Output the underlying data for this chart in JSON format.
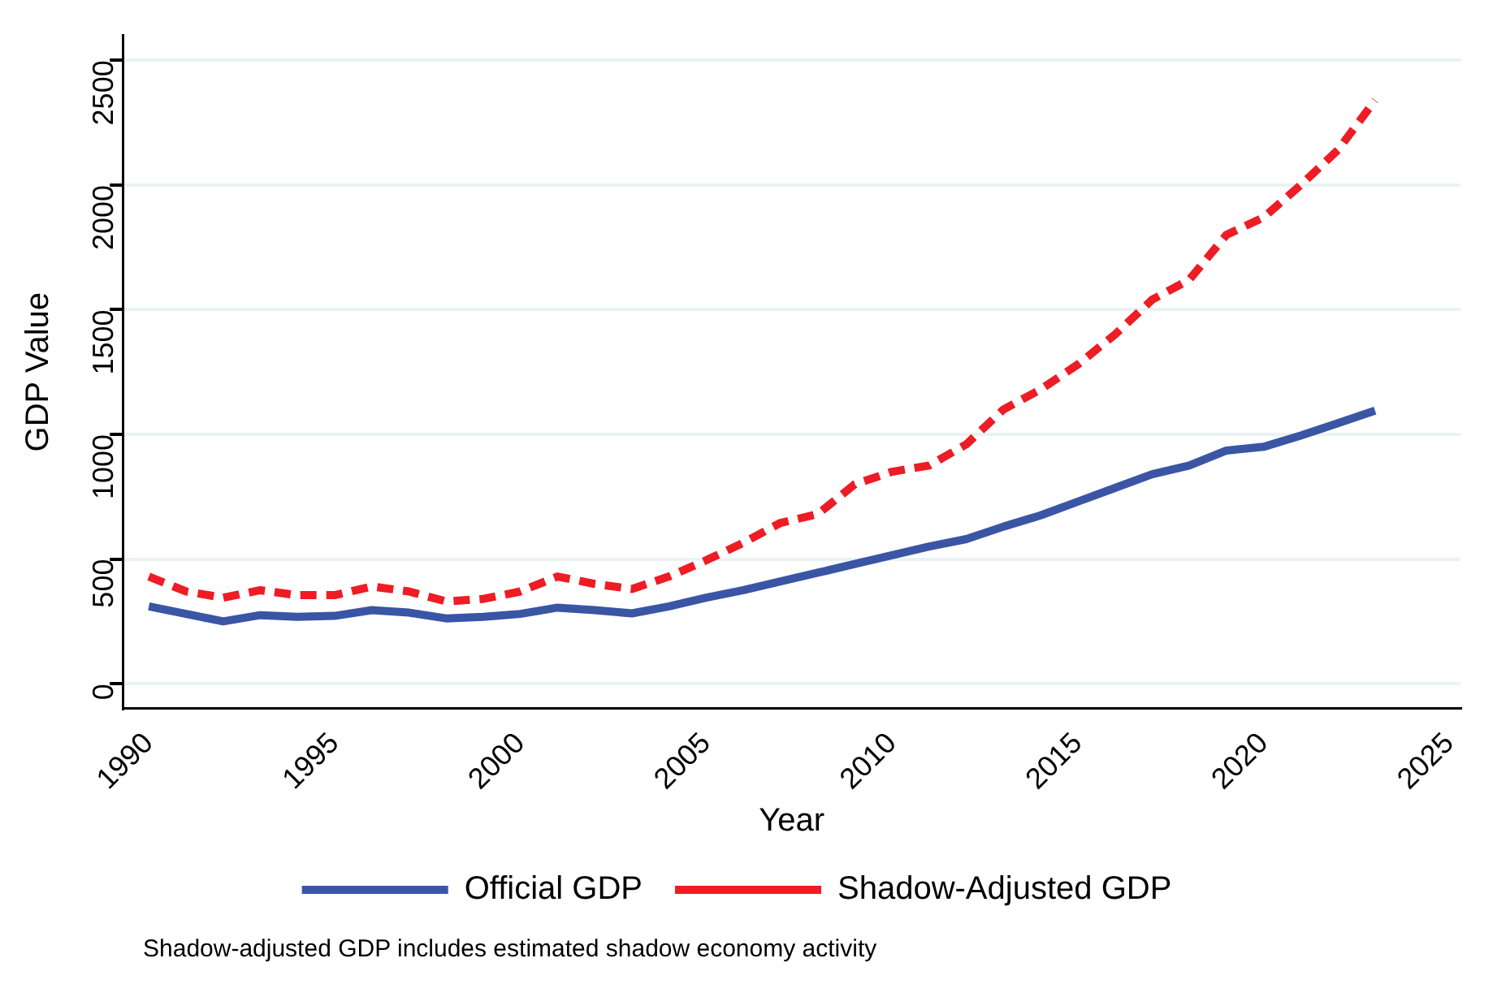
{
  "chart_data": {
    "type": "line",
    "xlabel": "Year",
    "ylabel": "GDP Value",
    "x": [
      1990,
      1991,
      1992,
      1993,
      1994,
      1995,
      1996,
      1997,
      1998,
      1999,
      2000,
      2001,
      2002,
      2003,
      2004,
      2005,
      2006,
      2007,
      2008,
      2009,
      2010,
      2011,
      2012,
      2013,
      2014,
      2015,
      2016,
      2017,
      2018,
      2019,
      2020,
      2021,
      2022,
      2023
    ],
    "series": [
      {
        "name": "Official GDP",
        "color": "#3a55a4",
        "line_style": "solid",
        "values": [
          310,
          280,
          250,
          275,
          268,
          272,
          295,
          285,
          262,
          268,
          280,
          305,
          295,
          282,
          310,
          345,
          375,
          410,
          445,
          480,
          515,
          550,
          580,
          630,
          675,
          730,
          785,
          840,
          875,
          935,
          950,
          995,
          1045,
          1095
        ]
      },
      {
        "name": "Shadow-Adjusted GDP",
        "color": "#ee1c25",
        "line_style": "dashed",
        "values": [
          430,
          370,
          345,
          375,
          355,
          355,
          390,
          370,
          330,
          340,
          370,
          430,
          400,
          380,
          430,
          495,
          565,
          645,
          680,
          800,
          850,
          875,
          960,
          1100,
          1180,
          1280,
          1400,
          1540,
          1620,
          1800,
          1870,
          2000,
          2140,
          2340
        ]
      }
    ],
    "xlim": [
      1989.3,
      2025.3
    ],
    "xticks": [
      1990,
      1995,
      2000,
      2005,
      2010,
      2015,
      2020,
      2025
    ],
    "ylim": [
      -100,
      2600
    ],
    "yticks": [
      0,
      500,
      1000,
      1500,
      2000,
      2500
    ],
    "grid": "y",
    "legend": "bottom",
    "marker": "none",
    "annotations": [
      "Shadow-adjusted GDP includes estimated shadow economy activity"
    ]
  }
}
